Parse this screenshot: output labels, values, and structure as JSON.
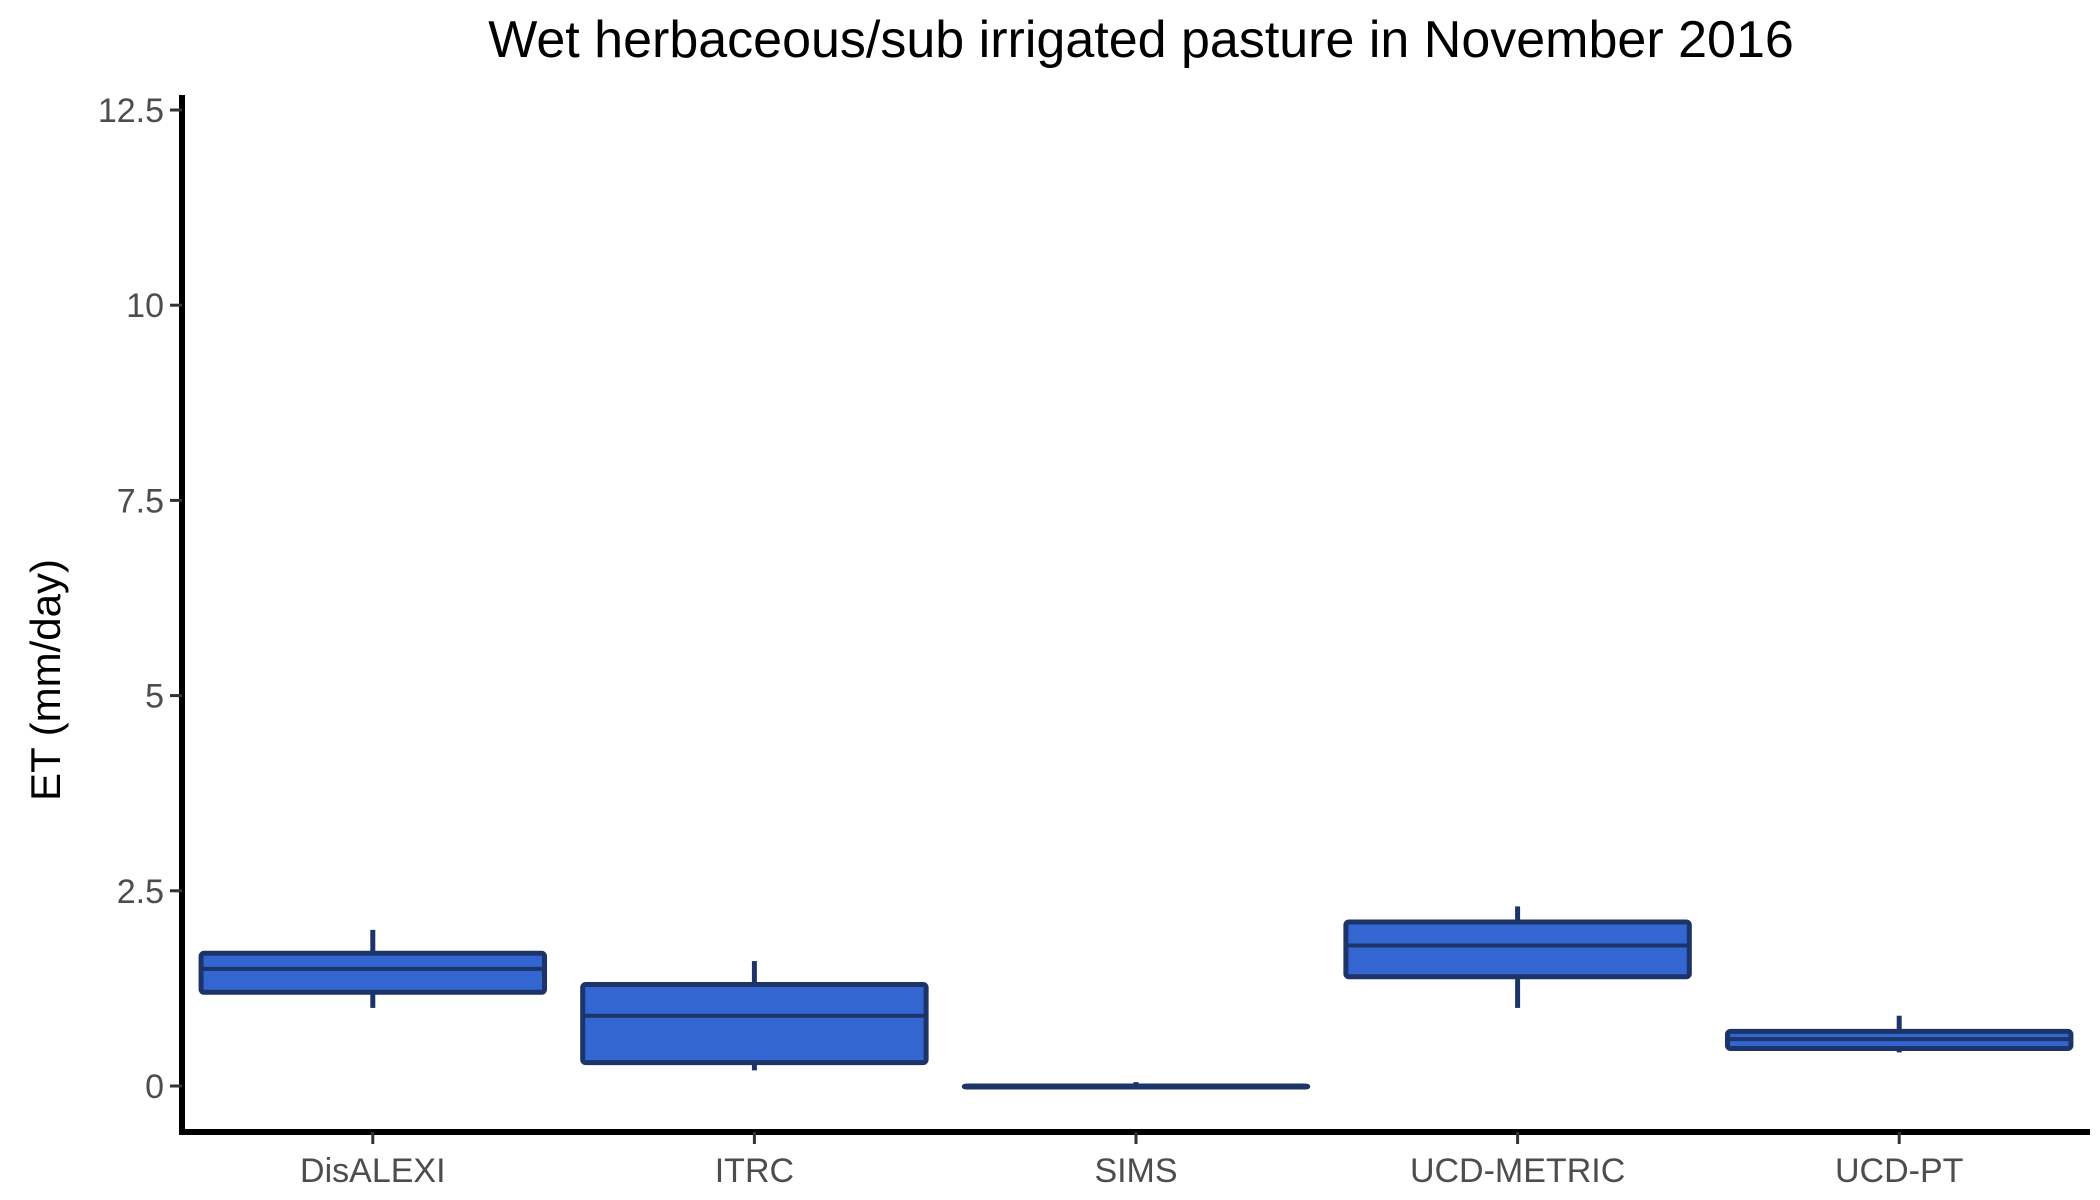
{
  "chart_data": {
    "type": "boxplot",
    "title": "Wet herbaceous/sub irrigated pasture in November 2016",
    "xlabel": "",
    "ylabel": "ET (mm/day)",
    "ylim": [
      -0.6,
      12.6
    ],
    "yticks": [
      "0",
      "2.5",
      "5",
      "7.5",
      "10",
      "12.5"
    ],
    "grid": false,
    "categories": [
      "DisALEXI",
      "ITRC",
      "SIMS",
      "UCD-METRIC",
      "UCD-PT"
    ],
    "boxes": [
      {
        "category": "DisALEXI",
        "min": 1.0,
        "q1": 1.2,
        "median": 1.5,
        "q3": 1.7,
        "max": 2.0
      },
      {
        "category": "ITRC",
        "min": 0.2,
        "q1": 0.3,
        "median": 0.9,
        "q3": 1.3,
        "max": 1.6
      },
      {
        "category": "SIMS",
        "min": 0.0,
        "q1": 0.0,
        "median": 0.0,
        "q3": 0.0,
        "max": 0.05
      },
      {
        "category": "UCD-METRIC",
        "min": 1.0,
        "q1": 1.4,
        "median": 1.8,
        "q3": 2.1,
        "max": 2.3
      },
      {
        "category": "UCD-PT",
        "min": 0.43,
        "q1": 0.48,
        "median": 0.6,
        "q3": 0.7,
        "max": 0.9
      }
    ],
    "colors": {
      "fill": "#3366d0",
      "stroke": "#1c3468",
      "axis": "#000000",
      "tick_label": "#4d4d4d"
    }
  }
}
